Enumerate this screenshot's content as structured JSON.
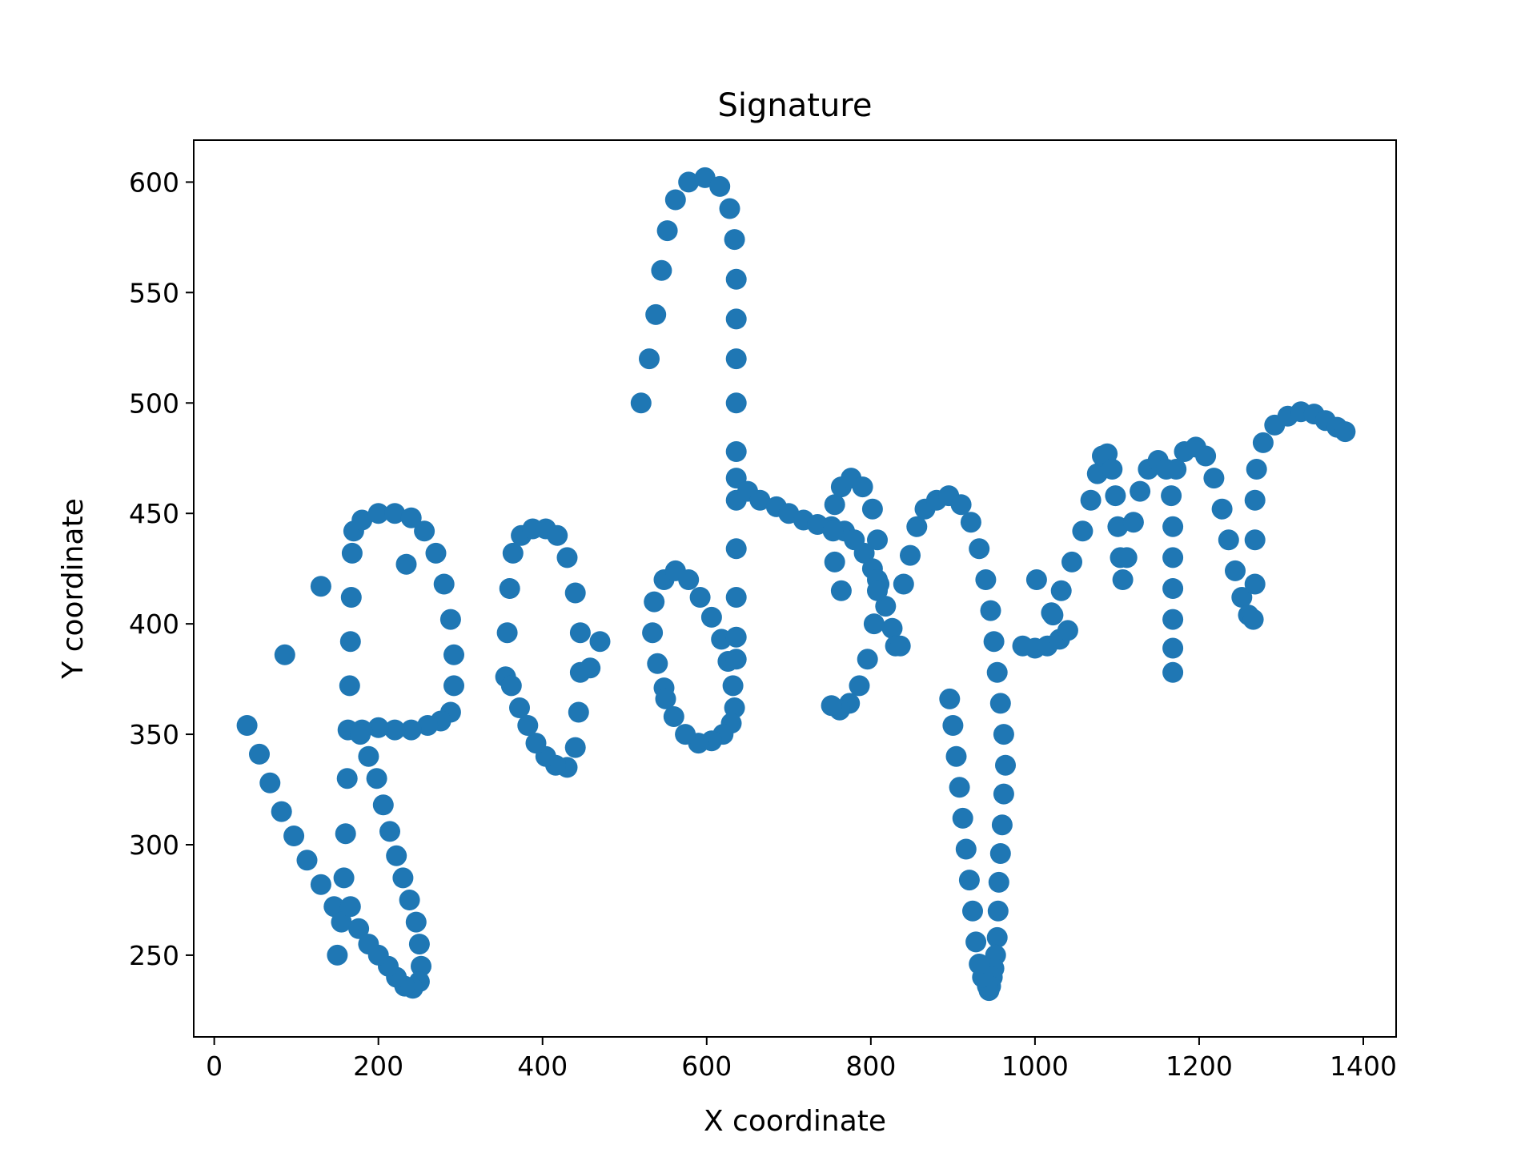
{
  "chart_data": {
    "type": "scatter",
    "title": "Signature",
    "xlabel": "X coordinate",
    "ylabel": "Y coordinate",
    "xlim": [
      -25,
      1440
    ],
    "ylim": [
      213,
      619
    ],
    "xticks": [
      0,
      200,
      400,
      600,
      800,
      1000,
      1200,
      1400
    ],
    "yticks": [
      250,
      300,
      350,
      400,
      450,
      500,
      550,
      600
    ],
    "grid": false,
    "legend": "none",
    "marker_color": "#1f77b4",
    "series": [
      {
        "points": [
          [
            40,
            354
          ],
          [
            55,
            341
          ],
          [
            68,
            328
          ],
          [
            82,
            315
          ],
          [
            97,
            304
          ],
          [
            113,
            293
          ],
          [
            130,
            282
          ],
          [
            146,
            272
          ],
          [
            150,
            250
          ],
          [
            155,
            265
          ],
          [
            158,
            285
          ],
          [
            160,
            305
          ],
          [
            162,
            330
          ],
          [
            163,
            352
          ],
          [
            165,
            372
          ],
          [
            166,
            392
          ],
          [
            167,
            412
          ],
          [
            168,
            432
          ],
          [
            170,
            442
          ],
          [
            180,
            447
          ],
          [
            200,
            450
          ],
          [
            220,
            450
          ],
          [
            240,
            448
          ],
          [
            256,
            442
          ],
          [
            270,
            432
          ],
          [
            280,
            418
          ],
          [
            288,
            402
          ],
          [
            292,
            386
          ],
          [
            292,
            372
          ],
          [
            288,
            360
          ],
          [
            276,
            356
          ],
          [
            260,
            354
          ],
          [
            240,
            352
          ],
          [
            220,
            352
          ],
          [
            200,
            353
          ],
          [
            180,
            352
          ],
          [
            178,
            350
          ],
          [
            188,
            340
          ],
          [
            198,
            330
          ],
          [
            206,
            318
          ],
          [
            214,
            306
          ],
          [
            222,
            295
          ],
          [
            230,
            285
          ],
          [
            238,
            275
          ],
          [
            246,
            265
          ],
          [
            250,
            255
          ],
          [
            252,
            245
          ],
          [
            250,
            238
          ],
          [
            242,
            235
          ],
          [
            232,
            236
          ],
          [
            222,
            240
          ],
          [
            212,
            245
          ],
          [
            200,
            250
          ],
          [
            188,
            255
          ],
          [
            176,
            262
          ],
          [
            166,
            272
          ],
          [
            86,
            386
          ],
          [
            130,
            417
          ],
          [
            234,
            427
          ],
          [
            355,
            376
          ],
          [
            357,
            396
          ],
          [
            360,
            416
          ],
          [
            364,
            432
          ],
          [
            374,
            440
          ],
          [
            388,
            443
          ],
          [
            404,
            443
          ],
          [
            418,
            440
          ],
          [
            430,
            430
          ],
          [
            440,
            414
          ],
          [
            446,
            396
          ],
          [
            446,
            378
          ],
          [
            444,
            360
          ],
          [
            440,
            344
          ],
          [
            430,
            335
          ],
          [
            416,
            336
          ],
          [
            404,
            340
          ],
          [
            392,
            346
          ],
          [
            382,
            354
          ],
          [
            372,
            362
          ],
          [
            362,
            372
          ],
          [
            458,
            380
          ],
          [
            470,
            392
          ],
          [
            548,
            371
          ],
          [
            540,
            382
          ],
          [
            534,
            396
          ],
          [
            536,
            410
          ],
          [
            548,
            420
          ],
          [
            562,
            424
          ],
          [
            578,
            420
          ],
          [
            592,
            412
          ],
          [
            606,
            403
          ],
          [
            618,
            393
          ],
          [
            626,
            383
          ],
          [
            632,
            372
          ],
          [
            634,
            362
          ],
          [
            630,
            355
          ],
          [
            620,
            350
          ],
          [
            606,
            347
          ],
          [
            590,
            346
          ],
          [
            574,
            350
          ],
          [
            560,
            358
          ],
          [
            550,
            366
          ],
          [
            520,
            500
          ],
          [
            530,
            520
          ],
          [
            538,
            540
          ],
          [
            545,
            560
          ],
          [
            552,
            578
          ],
          [
            562,
            592
          ],
          [
            578,
            600
          ],
          [
            598,
            602
          ],
          [
            616,
            598
          ],
          [
            628,
            588
          ],
          [
            634,
            574
          ],
          [
            636,
            556
          ],
          [
            636,
            538
          ],
          [
            636,
            520
          ],
          [
            636,
            500
          ],
          [
            636,
            478
          ],
          [
            636,
            456
          ],
          [
            636,
            434
          ],
          [
            636,
            412
          ],
          [
            636,
            394
          ],
          [
            636,
            384
          ],
          [
            636,
            466
          ],
          [
            650,
            460
          ],
          [
            665,
            456
          ],
          [
            685,
            453
          ],
          [
            700,
            450
          ],
          [
            718,
            447
          ],
          [
            735,
            445
          ],
          [
            752,
            444
          ],
          [
            768,
            442
          ],
          [
            780,
            438
          ],
          [
            792,
            432
          ],
          [
            802,
            425
          ],
          [
            810,
            418
          ],
          [
            818,
            408
          ],
          [
            826,
            398
          ],
          [
            830,
            390
          ],
          [
            764,
            415
          ],
          [
            756,
            428
          ],
          [
            754,
            442
          ],
          [
            756,
            454
          ],
          [
            764,
            462
          ],
          [
            776,
            466
          ],
          [
            790,
            462
          ],
          [
            802,
            452
          ],
          [
            808,
            438
          ],
          [
            808,
            420
          ],
          [
            804,
            400
          ],
          [
            796,
            384
          ],
          [
            786,
            372
          ],
          [
            774,
            364
          ],
          [
            762,
            361
          ],
          [
            752,
            363
          ],
          [
            840,
            418
          ],
          [
            848,
            431
          ],
          [
            856,
            444
          ],
          [
            866,
            452
          ],
          [
            880,
            456
          ],
          [
            895,
            458
          ],
          [
            910,
            454
          ],
          [
            922,
            446
          ],
          [
            932,
            434
          ],
          [
            940,
            420
          ],
          [
            946,
            406
          ],
          [
            950,
            392
          ],
          [
            954,
            378
          ],
          [
            958,
            364
          ],
          [
            962,
            350
          ],
          [
            964,
            336
          ],
          [
            962,
            323
          ],
          [
            960,
            309
          ],
          [
            958,
            296
          ],
          [
            956,
            283
          ],
          [
            955,
            270
          ],
          [
            954,
            258
          ],
          [
            952,
            250
          ],
          [
            950,
            244
          ],
          [
            948,
            240
          ],
          [
            946,
            236
          ],
          [
            944,
            234
          ],
          [
            942,
            236
          ],
          [
            936,
            240
          ],
          [
            932,
            246
          ],
          [
            928,
            256
          ],
          [
            924,
            270
          ],
          [
            920,
            284
          ],
          [
            916,
            298
          ],
          [
            912,
            312
          ],
          [
            908,
            326
          ],
          [
            904,
            340
          ],
          [
            900,
            354
          ],
          [
            896,
            366
          ],
          [
            985,
            390
          ],
          [
            1000,
            389
          ],
          [
            1015,
            390
          ],
          [
            1030,
            393
          ],
          [
            1040,
            397
          ],
          [
            1020,
            405
          ],
          [
            1032,
            415
          ],
          [
            1045,
            428
          ],
          [
            1058,
            442
          ],
          [
            1068,
            456
          ],
          [
            1076,
            468
          ],
          [
            1082,
            476
          ],
          [
            1088,
            477
          ],
          [
            1094,
            470
          ],
          [
            1098,
            458
          ],
          [
            1101,
            444
          ],
          [
            1104,
            430
          ],
          [
            1107,
            420
          ],
          [
            1112,
            430
          ],
          [
            1120,
            446
          ],
          [
            1128,
            460
          ],
          [
            1138,
            470
          ],
          [
            1150,
            474
          ],
          [
            1160,
            470
          ],
          [
            1166,
            458
          ],
          [
            1168,
            444
          ],
          [
            1168,
            430
          ],
          [
            1168,
            416
          ],
          [
            1168,
            402
          ],
          [
            1168,
            389
          ],
          [
            1168,
            378
          ],
          [
            1172,
            470
          ],
          [
            1182,
            478
          ],
          [
            1196,
            480
          ],
          [
            1208,
            476
          ],
          [
            1218,
            466
          ],
          [
            1228,
            452
          ],
          [
            1236,
            438
          ],
          [
            1244,
            424
          ],
          [
            1252,
            412
          ],
          [
            1260,
            404
          ],
          [
            1266,
            402
          ],
          [
            1268,
            418
          ],
          [
            1268,
            438
          ],
          [
            1268,
            456
          ],
          [
            1270,
            470
          ],
          [
            1278,
            482
          ],
          [
            1292,
            490
          ],
          [
            1308,
            494
          ],
          [
            1324,
            496
          ],
          [
            1340,
            495
          ],
          [
            1354,
            492
          ],
          [
            1368,
            489
          ],
          [
            1378,
            487
          ],
          [
            1002,
            420
          ],
          [
            1022,
            404
          ],
          [
            808,
            415
          ],
          [
            836,
            390
          ]
        ]
      }
    ]
  }
}
